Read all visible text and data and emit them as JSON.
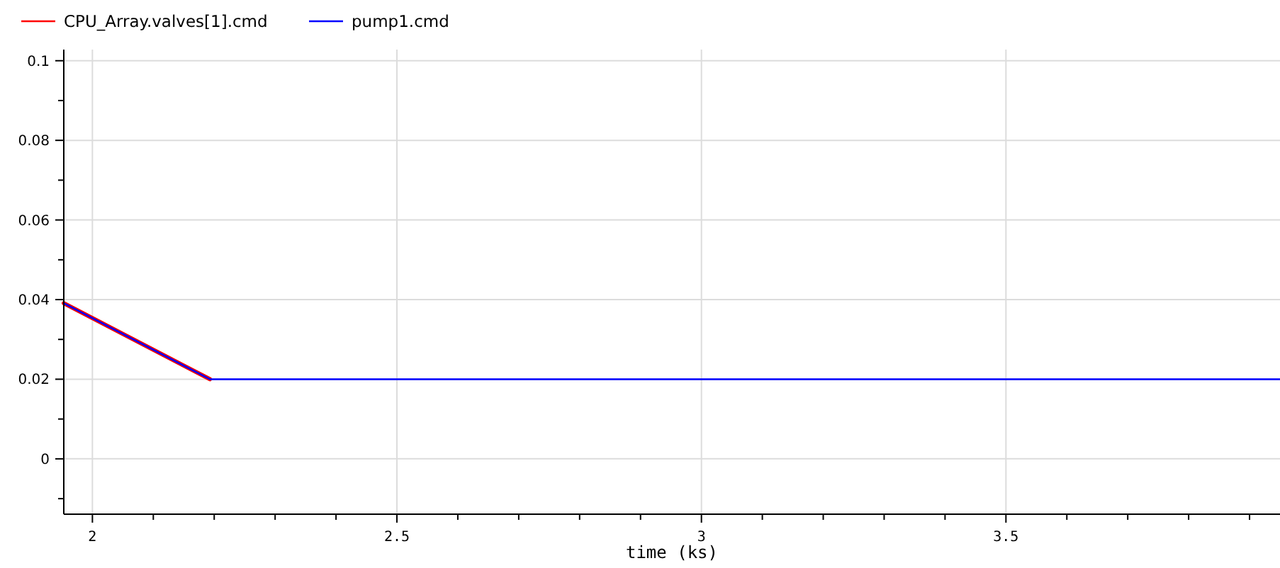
{
  "chart_data": {
    "type": "line",
    "xlabel": "time (ks)",
    "xlim": [
      1.953,
      3.95
    ],
    "xticks": [
      2,
      {
        "value": 2.1,
        "label": null
      },
      {
        "value": 2.2,
        "label": null
      },
      {
        "value": 2.3,
        "label": null
      },
      {
        "value": 2.4,
        "label": null
      },
      2.5,
      {
        "value": 2.6,
        "label": null
      },
      {
        "value": 2.7,
        "label": null
      },
      {
        "value": 2.8,
        "label": null
      },
      {
        "value": 2.9,
        "label": null
      },
      3,
      {
        "value": 3.1,
        "label": null
      },
      {
        "value": 3.2,
        "label": null
      },
      {
        "value": 3.3,
        "label": null
      },
      {
        "value": 3.4,
        "label": null
      },
      3.5,
      {
        "value": 3.6,
        "label": null
      },
      {
        "value": 3.7,
        "label": null
      },
      {
        "value": 3.8,
        "label": null
      },
      {
        "value": 3.9,
        "label": null
      }
    ],
    "ylim": [
      -0.0139,
      0.1028
    ],
    "yticks": [
      {
        "value": -0.01,
        "label": null
      },
      0,
      {
        "value": 0.01,
        "label": null
      },
      0.02,
      {
        "value": 0.03,
        "label": null
      },
      0.04,
      {
        "value": 0.05,
        "label": null
      },
      0.06,
      {
        "value": 0.07,
        "label": null
      },
      0.08,
      {
        "value": 0.09,
        "label": null
      },
      0.1
    ],
    "grid": true,
    "legend": "top left",
    "line_style": "solid",
    "marker": "none",
    "series": [
      {
        "name": "CPU_Array.valves[1].cmd",
        "color": "#ff0000",
        "x": [
          1.953,
          2.193
        ],
        "values": [
          0.0391,
          0.02
        ]
      },
      {
        "name": "pump1.cmd",
        "color": "#0000ff",
        "x": [
          1.953,
          2.193,
          3.95
        ],
        "values": [
          0.0391,
          0.02,
          0.02
        ]
      }
    ]
  }
}
